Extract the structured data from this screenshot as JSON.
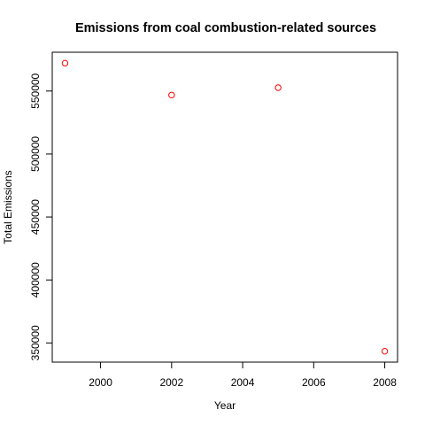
{
  "chart_data": {
    "type": "scatter",
    "title": "Emissions from coal combustion-related sources",
    "xlabel": "Year",
    "ylabel": "Total Emissions",
    "x": [
      1999,
      2002,
      2005,
      2008
    ],
    "y": [
      572126,
      546789,
      552675,
      343432
    ],
    "xlim": [
      1998.64,
      2008.36
    ],
    "ylim": [
      334765,
      580793
    ],
    "x_ticks": [
      2000,
      2002,
      2004,
      2006,
      2008
    ],
    "x_tick_labels": [
      "2000",
      "2002",
      "2004",
      "2006",
      "2008"
    ],
    "y_ticks": [
      350000,
      400000,
      450000,
      500000,
      550000
    ],
    "y_tick_labels": [
      "350000",
      "400000",
      "450000",
      "500000",
      "550000"
    ],
    "grid": false,
    "marker": "open-circle",
    "marker_color": "#ff0000"
  }
}
